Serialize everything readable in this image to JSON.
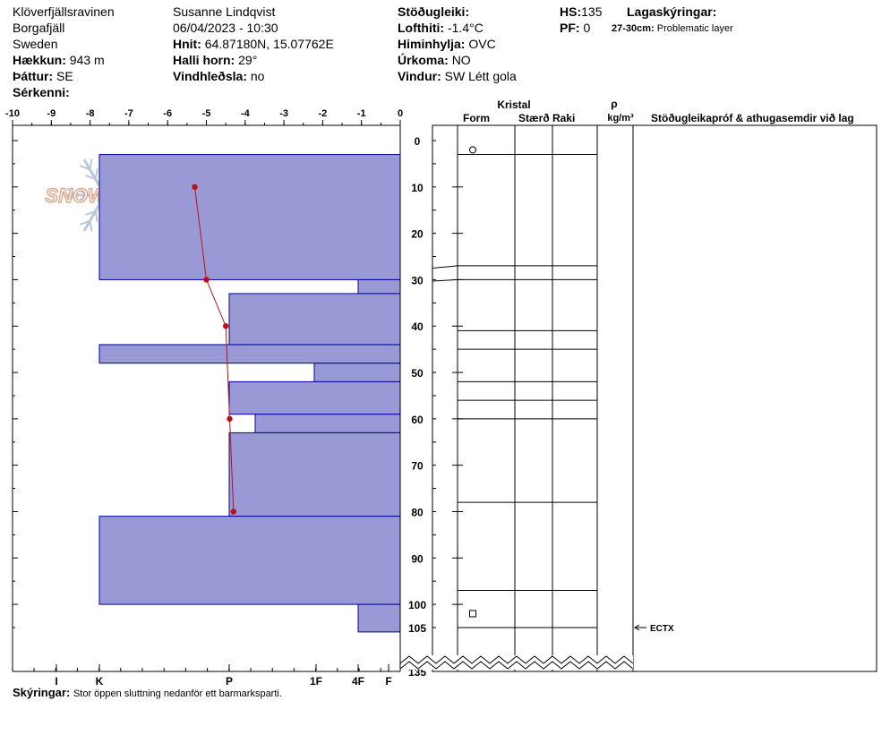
{
  "header": {
    "location": "Klöverfjällsravinen",
    "region": "Borgafjäll",
    "country": "Sweden",
    "elevation_label": "Hækkun:",
    "elevation_value": "943 m",
    "aspect_label": "Þáttur:",
    "aspect_value": "SE",
    "features_label": "Sérkenni:",
    "observer": "Susanne Lindqvist",
    "datetime": "06/04/2023 - 10:30",
    "coords_label": "Hnit:",
    "coords_value": "64.87180N, 15.07762E",
    "slope_label": "Halli horn:",
    "slope_value": "29°",
    "wind_loading_label": "Vindhleðsla:",
    "wind_loading_value": "no",
    "stability_label": "Stöðugleiki:",
    "air_temp_label": "Lofthiti:",
    "air_temp_value": "-1.4°C",
    "sky_label": "Himinhylja:",
    "sky_value": "OVC",
    "precip_label": "Úrkoma:",
    "precip_value": "NO",
    "wind_label": "Vindur:",
    "wind_value": "SW Létt gola",
    "hs_label": "HS:",
    "hs_value": "135",
    "pf_label": "PF:",
    "pf_value": "0",
    "layer_notes_label": "Lagaskýringar:",
    "layer_note_range": "27-30cm:",
    "layer_note_text": "Problematic layer"
  },
  "footer": {
    "notes_label": "Skýringar:",
    "notes_value": "Stor öppen sluttning nedanför ett barmarksparti."
  },
  "logo_text": "SNOWPILOT",
  "chart_data": {
    "type": "snow-profile",
    "temp_axis": {
      "min": -10,
      "max": 0,
      "ticks": [
        -10,
        -9,
        -8,
        -7,
        -6,
        -5,
        -4,
        -3,
        -2,
        -1,
        0
      ]
    },
    "depth_axis": {
      "min": 0,
      "max": 135,
      "ticks": [
        0,
        10,
        20,
        30,
        40,
        50,
        60,
        70,
        80,
        90,
        100,
        105,
        135
      ]
    },
    "hardness_ticks": [
      "I",
      "K",
      "P",
      "1F",
      "4F",
      "F"
    ],
    "hardness_layers": [
      {
        "top": 3,
        "bottom": 30,
        "hardness": "K"
      },
      {
        "top": 30,
        "bottom": 33,
        "hardness": "4F"
      },
      {
        "top": 33,
        "bottom": 44,
        "hardness": "P"
      },
      {
        "top": 44,
        "bottom": 48,
        "hardness": "K"
      },
      {
        "top": 48,
        "bottom": 52,
        "hardness": "1F+"
      },
      {
        "top": 52,
        "bottom": 59,
        "hardness": "P"
      },
      {
        "top": 59,
        "bottom": 63,
        "hardness": "P-"
      },
      {
        "top": 63,
        "bottom": 81,
        "hardness": "P"
      },
      {
        "top": 81,
        "bottom": 100,
        "hardness": "K"
      },
      {
        "top": 100,
        "bottom": 108,
        "hardness": "4F"
      }
    ],
    "temperature_profile": [
      {
        "depth": 10,
        "temp": -5.3
      },
      {
        "depth": 30,
        "temp": -5.0
      },
      {
        "depth": 40,
        "temp": -4.5
      },
      {
        "depth": 60,
        "temp": -4.4
      },
      {
        "depth": 80,
        "temp": -4.3
      }
    ],
    "crystal_columns": {
      "group": "Kristal",
      "form": "Form",
      "size": "Stærð",
      "moisture": "Raki"
    },
    "density_header": "ρ",
    "density_units": "kg/m³",
    "remarks_header": "Stöðugleikapróf & athugasemdir við lag",
    "layer_boundaries": [
      3,
      27,
      30,
      41,
      45,
      52,
      56,
      60,
      78,
      97,
      105
    ],
    "grain_forms": [
      {
        "depth": 2,
        "symbol": "circle"
      },
      {
        "depth": 102,
        "symbol": "square"
      }
    ],
    "stability_tests": [
      {
        "depth": 105,
        "result": "ECTX"
      }
    ],
    "colors": {
      "hardness_fill": "#9999d6",
      "hardness_stroke": "#0000a0",
      "temp_line": "#bb1111"
    }
  }
}
